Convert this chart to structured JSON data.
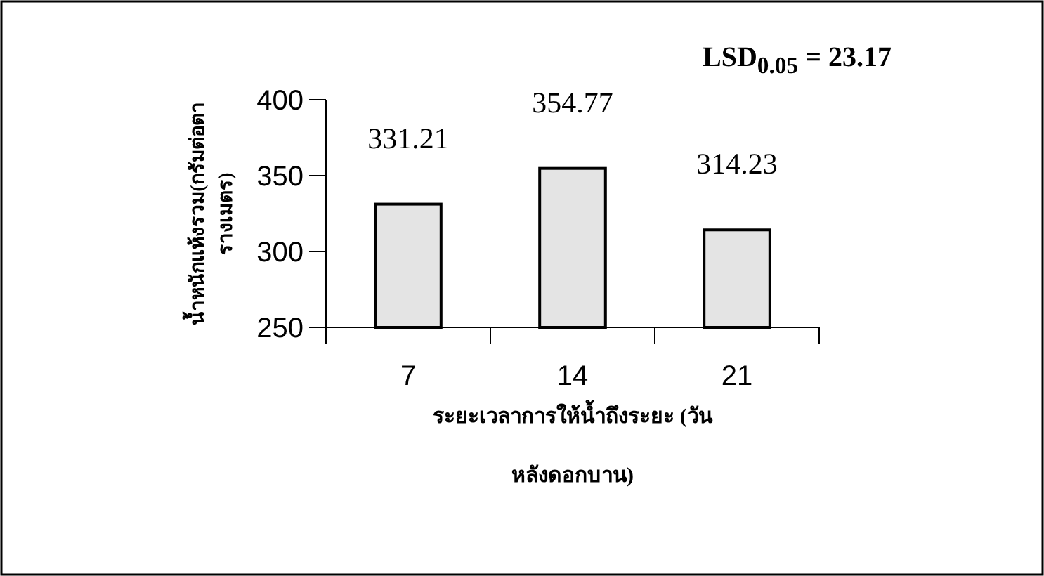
{
  "chart_data": {
    "type": "bar",
    "categories": [
      "7",
      "14",
      "21"
    ],
    "values": [
      331.21,
      354.77,
      314.23
    ],
    "color": "#e4e4e4",
    "data_labels": true,
    "ylim": [
      250,
      400
    ],
    "yticks": [
      250,
      300,
      350,
      400
    ],
    "xlabel": "ระยะเวลาการให้น้ำถึงระยะ (วันหลังดอกบาน)",
    "ylabel": "น้ำหนักแห้งรวม(กรัมต่อตารางเมตร)",
    "annotations": [
      "**LSD$_{0.05}$ = 23.17**"
    ],
    "grid": false
  }
}
